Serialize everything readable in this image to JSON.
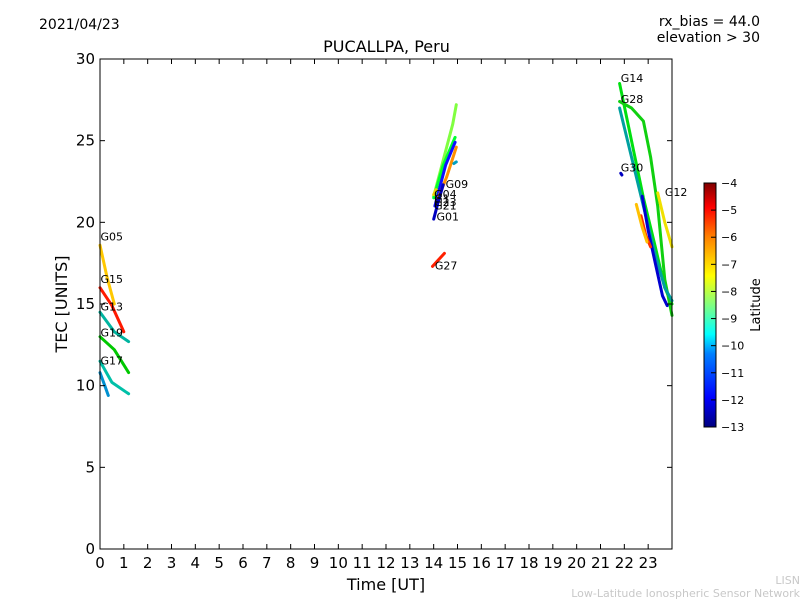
{
  "header": {
    "date": "2021/04/23",
    "title": "PUCALLPA, Peru",
    "rx_bias": "rx_bias = 44.0",
    "elevation": "elevation > 30"
  },
  "credit": {
    "line1": "LISN",
    "line2": "Low-Latitude Ionospheric Sensor Network"
  },
  "chart_data": {
    "type": "scatter",
    "title": "PUCALLPA, Peru",
    "xlabel": "Time [UT]",
    "ylabel": "TEC [UNITS]",
    "xlim": [
      0,
      24
    ],
    "ylim": [
      0,
      30
    ],
    "xticks": [
      0,
      1,
      2,
      3,
      4,
      5,
      6,
      7,
      8,
      9,
      10,
      11,
      12,
      13,
      14,
      15,
      16,
      17,
      18,
      19,
      20,
      21,
      22,
      23
    ],
    "yticks": [
      0,
      5,
      10,
      15,
      20,
      25,
      30
    ],
    "colorbar": {
      "label": "Latitude",
      "range": [
        -13,
        -4
      ],
      "ticks": [
        -4,
        -5,
        -6,
        -7,
        -8,
        -9,
        -10,
        -11,
        -12,
        -13
      ],
      "colormap": [
        "#00007f",
        "#0000ff",
        "#0080ff",
        "#00ffff",
        "#80ff80",
        "#ffff00",
        "#ff8000",
        "#ff0000",
        "#7f0000"
      ]
    },
    "series": [
      {
        "name": "G05",
        "color": "#ffc800",
        "x": [
          0.0,
          0.3,
          0.6
        ],
        "y": [
          18.6,
          16.6,
          15.0
        ]
      },
      {
        "name": "G15",
        "color": "#ff1a00",
        "x": [
          0.0,
          0.5,
          1.0
        ],
        "y": [
          16.0,
          14.9,
          13.3
        ]
      },
      {
        "name": "G13",
        "color": "#00b4a0",
        "x": [
          0.0,
          0.6,
          1.2
        ],
        "y": [
          14.5,
          13.3,
          12.7
        ]
      },
      {
        "name": "G19",
        "color": "#00c800",
        "x": [
          0.0,
          0.6,
          1.2
        ],
        "y": [
          13.0,
          12.2,
          10.8
        ]
      },
      {
        "name": "G17",
        "color": "#00c0a8",
        "x": [
          0.0,
          0.5,
          1.2
        ],
        "y": [
          11.5,
          10.2,
          9.5
        ]
      },
      {
        "name": "",
        "color": "#0090d0",
        "x": [
          0.0,
          0.2,
          0.35
        ],
        "y": [
          10.8,
          10.0,
          9.4
        ]
      },
      {
        "name": "",
        "color": "#80ff40",
        "x": [
          14.0,
          14.4,
          14.8,
          14.95
        ],
        "y": [
          21.6,
          23.8,
          26.0,
          27.2
        ]
      },
      {
        "name": "",
        "color": "#00ff30",
        "x": [
          14.0,
          14.4,
          14.9
        ],
        "y": [
          21.5,
          23.5,
          25.2
        ]
      },
      {
        "name": "",
        "color": "#1010ff",
        "x": [
          14.05,
          14.5,
          14.9
        ],
        "y": [
          21.0,
          23.5,
          24.9
        ]
      },
      {
        "name": "G09",
        "color": "#ff9000",
        "x": [
          14.2,
          14.55,
          14.95
        ],
        "y": [
          21.5,
          22.8,
          24.6
        ]
      },
      {
        "name": "G04",
        "color": "#f0d000",
        "x": [
          14.0,
          14.1
        ],
        "y": [
          21.7,
          22.0
        ]
      },
      {
        "name": "",
        "color": "#00a0c0",
        "x": [
          14.85,
          14.95
        ],
        "y": [
          23.6,
          23.7
        ]
      },
      {
        "name": "G01",
        "color": "#0000c0",
        "x": [
          14.0,
          14.2,
          14.4
        ],
        "y": [
          20.2,
          21.3,
          22.3
        ]
      },
      {
        "name": "G27",
        "color": "#ff2000",
        "x": [
          13.95,
          14.2,
          14.45
        ],
        "y": [
          17.3,
          17.7,
          18.1
        ]
      },
      {
        "name": "G14",
        "color": "#00e010",
        "x": [
          21.8,
          22.3,
          22.8,
          23.3,
          23.7,
          24.0
        ],
        "y": [
          28.5,
          25.0,
          21.5,
          18.5,
          16.0,
          15.0
        ]
      },
      {
        "name": "G28",
        "color": "#10d010",
        "x": [
          21.8,
          22.3,
          22.8,
          23.1,
          23.4,
          23.7,
          24.0
        ],
        "y": [
          27.4,
          27.0,
          26.2,
          24.0,
          21.0,
          16.5,
          14.3
        ]
      },
      {
        "name": "",
        "color": "#00a0a0",
        "x": [
          21.8,
          22.3,
          22.8,
          23.3,
          23.7,
          24.0
        ],
        "y": [
          27.0,
          24.0,
          21.0,
          18.0,
          16.0,
          15.2
        ]
      },
      {
        "name": "G30",
        "color": "#0000c0",
        "x": [
          21.85,
          21.9
        ],
        "y": [
          23.0,
          22.9
        ]
      },
      {
        "name": "",
        "color": "#0000d0",
        "x": [
          22.75,
          23.0,
          23.3,
          23.6,
          23.8
        ],
        "y": [
          21.6,
          19.5,
          17.5,
          15.5,
          14.9
        ]
      },
      {
        "name": "",
        "color": "#ff3000",
        "x": [
          22.7,
          22.9,
          23.1
        ],
        "y": [
          20.4,
          19.2,
          18.5
        ]
      },
      {
        "name": "",
        "color": "#ffc000",
        "x": [
          22.5,
          22.75,
          22.95
        ],
        "y": [
          21.1,
          19.7,
          18.8
        ]
      },
      {
        "name": "G12",
        "color": "#f0e000",
        "x": [
          23.4,
          23.7,
          24.0
        ],
        "y": [
          21.8,
          20.0,
          18.5
        ]
      }
    ],
    "annotations": [
      {
        "text": "G05",
        "x": 0.02,
        "y": 18.9
      },
      {
        "text": "G15",
        "x": 0.02,
        "y": 16.3
      },
      {
        "text": "G13",
        "x": 0.02,
        "y": 14.6
      },
      {
        "text": "G19",
        "x": 0.02,
        "y": 13.0
      },
      {
        "text": "G17",
        "x": 0.02,
        "y": 11.3
      },
      {
        "text": "G04",
        "x": 14.02,
        "y": 21.5
      },
      {
        "text": "G09",
        "x": 14.5,
        "y": 22.1
      },
      {
        "text": "G1",
        "x": 14.02,
        "y": 21.2
      },
      {
        "text": "G23",
        "x": 14.02,
        "y": 21.0
      },
      {
        "text": "G21",
        "x": 14.02,
        "y": 20.8
      },
      {
        "text": "G01",
        "x": 14.12,
        "y": 20.1
      },
      {
        "text": "G27",
        "x": 14.05,
        "y": 17.1
      },
      {
        "text": "G14",
        "x": 21.85,
        "y": 28.6
      },
      {
        "text": "G28",
        "x": 21.85,
        "y": 27.3
      },
      {
        "text": "G30",
        "x": 21.85,
        "y": 23.1
      },
      {
        "text": "G12",
        "x": 23.7,
        "y": 21.6
      }
    ]
  }
}
